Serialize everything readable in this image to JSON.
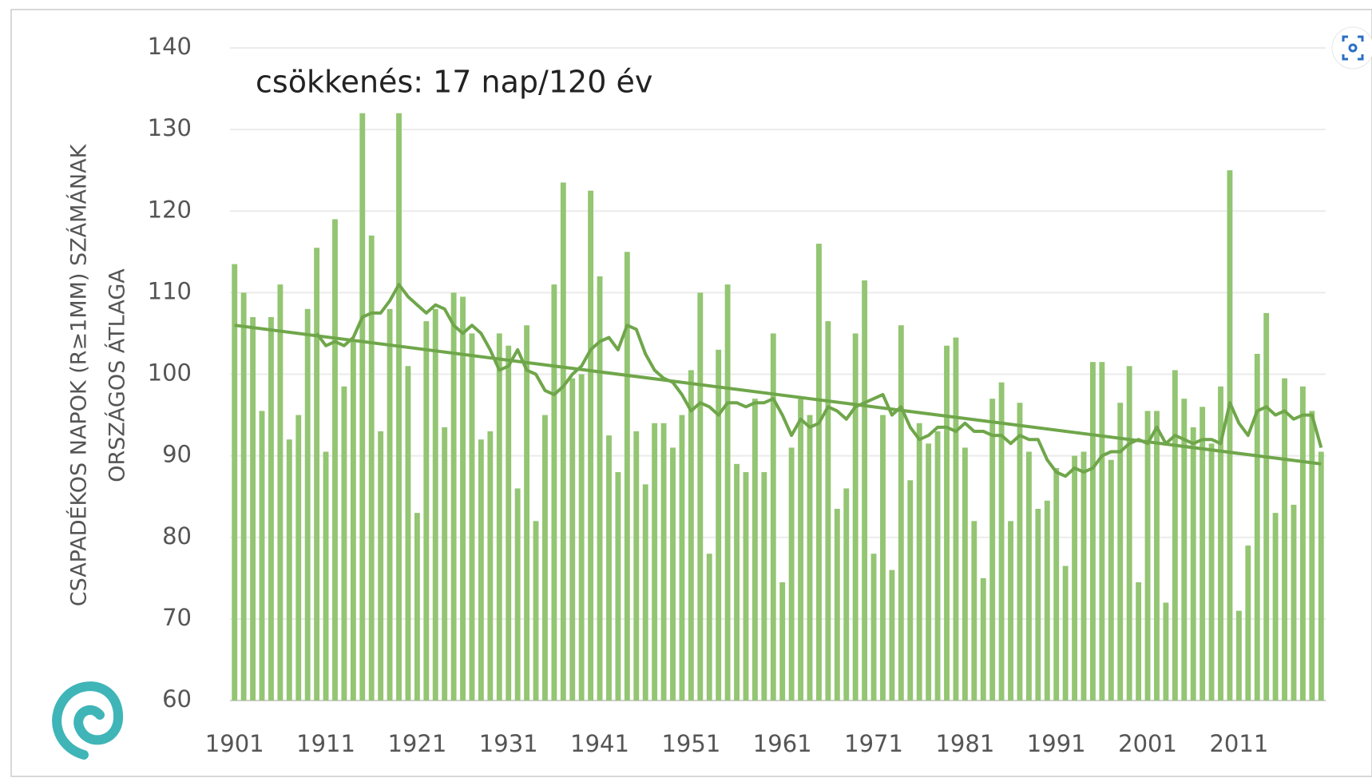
{
  "chart_data": {
    "type": "bar",
    "annotation": "csökkenés: 17 nap/120 év",
    "y_label": [
      "CSAPADÉKOS NAPOK (R≥1MM)  SZÁMÁNAK",
      "ORSZÁGOS ÁTLAGA"
    ],
    "x": [
      1901,
      1902,
      1903,
      1904,
      1905,
      1906,
      1907,
      1908,
      1909,
      1910,
      1911,
      1912,
      1913,
      1914,
      1915,
      1916,
      1917,
      1918,
      1919,
      1920,
      1921,
      1922,
      1923,
      1924,
      1925,
      1926,
      1927,
      1928,
      1929,
      1930,
      1931,
      1932,
      1933,
      1934,
      1935,
      1936,
      1937,
      1938,
      1939,
      1940,
      1941,
      1942,
      1943,
      1944,
      1945,
      1946,
      1947,
      1948,
      1949,
      1950,
      1951,
      1952,
      1953,
      1954,
      1955,
      1956,
      1957,
      1958,
      1959,
      1960,
      1961,
      1962,
      1963,
      1964,
      1965,
      1966,
      1967,
      1968,
      1969,
      1970,
      1971,
      1972,
      1973,
      1974,
      1975,
      1976,
      1977,
      1978,
      1979,
      1980,
      1981,
      1982,
      1983,
      1984,
      1985,
      1986,
      1987,
      1988,
      1989,
      1990,
      1991,
      1992,
      1993,
      1994,
      1995,
      1996,
      1997,
      1998,
      1999,
      2000,
      2001,
      2002,
      2003,
      2004,
      2005,
      2006,
      2007,
      2008,
      2009,
      2010,
      2011,
      2012,
      2013,
      2014,
      2015,
      2016,
      2017,
      2018,
      2019,
      2020
    ],
    "series": [
      {
        "type": "bar",
        "color": "#93c572",
        "values": [
          113.5,
          110,
          107,
          95.5,
          107,
          111,
          92,
          95,
          108,
          115.5,
          90.5,
          119,
          98.5,
          104,
          132,
          117,
          93,
          108,
          132,
          101,
          83,
          106.5,
          108,
          93.5,
          110,
          109.5,
          105,
          92,
          93,
          105,
          103.5,
          86,
          106,
          82,
          95,
          111,
          123.5,
          99.5,
          100,
          122.5,
          112,
          92.5,
          88,
          115,
          93,
          86.5,
          94,
          94,
          91,
          95,
          100.5,
          110,
          78,
          103,
          111,
          89,
          88,
          97,
          88,
          105,
          74.5,
          91,
          97,
          95,
          116,
          106.5,
          83.5,
          86,
          105,
          111.5,
          78,
          95,
          76,
          106,
          87,
          94,
          91.5,
          93,
          103.5,
          104.5,
          91,
          82,
          75,
          97,
          99,
          82,
          96.5,
          90.5,
          83.5,
          84.5,
          88.5,
          76.5,
          90,
          90.5,
          101.5,
          101.5,
          89.5,
          96.5,
          101,
          74.5,
          95.5,
          95.5,
          72,
          100.5,
          97,
          93.5,
          96,
          91.5,
          98.5,
          125,
          71,
          79,
          102.5,
          107.5,
          83,
          99.5,
          84,
          98.5,
          95.5,
          90.5
        ]
      },
      {
        "type": "line",
        "color": "#6fa64a",
        "values": [
          null,
          null,
          null,
          null,
          null,
          null,
          null,
          null,
          null,
          105,
          103.5,
          104,
          103.5,
          104.5,
          107,
          107.5,
          107.5,
          109,
          111,
          109.5,
          108.5,
          107.5,
          108.5,
          108,
          106,
          105,
          106,
          105,
          103,
          100.5,
          101,
          103,
          100.5,
          100,
          98,
          97.5,
          98.5,
          100,
          101,
          103,
          104,
          104.5,
          103,
          106,
          105.5,
          102.5,
          100.5,
          99.5,
          99,
          97.5,
          95.5,
          96.5,
          96,
          95,
          96.5,
          96.5,
          96,
          96.5,
          96.5,
          97,
          95,
          92.5,
          94.5,
          93.5,
          94,
          96,
          95.5,
          94.5,
          96,
          96.5,
          97,
          97.5,
          95,
          96,
          93.5,
          92,
          92.5,
          93.5,
          93.5,
          93,
          94,
          93,
          93,
          92.5,
          92.5,
          91.5,
          92.5,
          92,
          92,
          89.5,
          88,
          87.5,
          88.5,
          88,
          88.5,
          90,
          90.5,
          90.5,
          91.5,
          92,
          91.5,
          93.5,
          91.5,
          92.5,
          92,
          91.5,
          92,
          92,
          91.5,
          96.5,
          94,
          92.5,
          95.5,
          96,
          95,
          95.5,
          94.5,
          95,
          95,
          91
        ]
      },
      {
        "type": "line",
        "color": "#6fa64a",
        "x": [
          1901,
          2020
        ],
        "values": [
          106,
          89
        ]
      }
    ],
    "xlim": [
      1900.5,
      2020.5
    ],
    "xticks": [
      1901,
      1911,
      1921,
      1931,
      1941,
      1951,
      1961,
      1971,
      1981,
      1991,
      2001,
      2011
    ],
    "ylim": [
      60,
      140
    ],
    "yticks": [
      60,
      70,
      80,
      90,
      100,
      110,
      120,
      130,
      140
    ],
    "grid": true
  }
}
